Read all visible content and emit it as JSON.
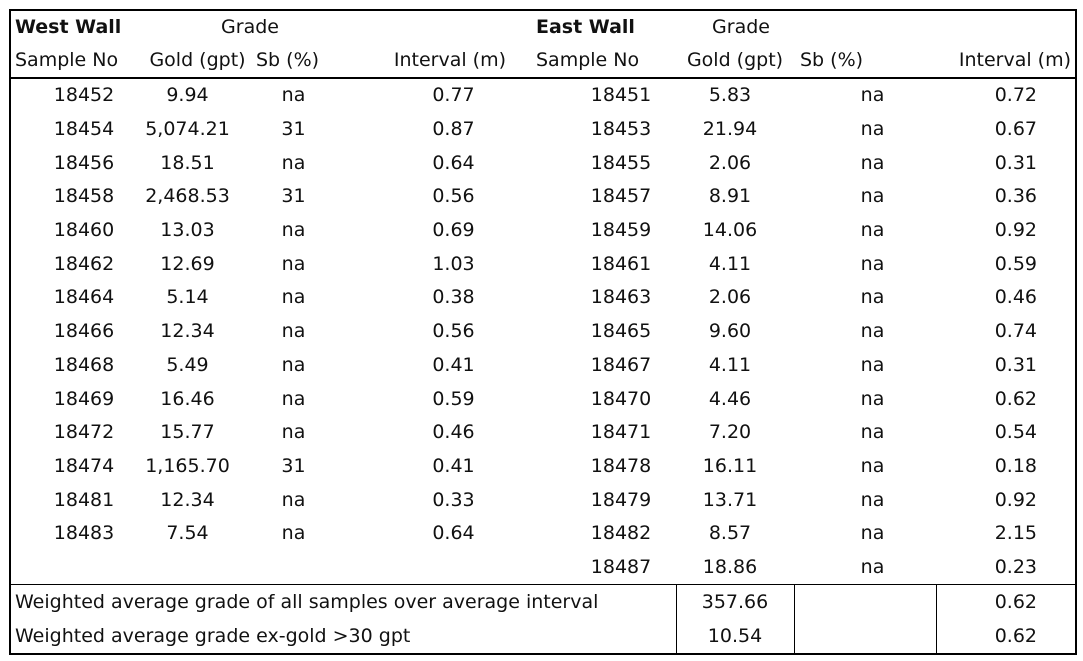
{
  "west": {
    "title": "West Wall",
    "grade_label": "Grade",
    "headers": [
      "Sample No",
      "Gold (gpt)",
      "Sb (%)",
      "Interval (m)"
    ],
    "rows": [
      [
        "18452",
        "9.94",
        "na",
        "0.77"
      ],
      [
        "18454",
        "5,074.21",
        "31",
        "0.87"
      ],
      [
        "18456",
        "18.51",
        "na",
        "0.64"
      ],
      [
        "18458",
        "2,468.53",
        "31",
        "0.56"
      ],
      [
        "18460",
        "13.03",
        "na",
        "0.69"
      ],
      [
        "18462",
        "12.69",
        "na",
        "1.03"
      ],
      [
        "18464",
        "5.14",
        "na",
        "0.38"
      ],
      [
        "18466",
        "12.34",
        "na",
        "0.56"
      ],
      [
        "18468",
        "5.49",
        "na",
        "0.41"
      ],
      [
        "18469",
        "16.46",
        "na",
        "0.59"
      ],
      [
        "18472",
        "15.77",
        "na",
        "0.46"
      ],
      [
        "18474",
        "1,165.70",
        "31",
        "0.41"
      ],
      [
        "18481",
        "12.34",
        "na",
        "0.33"
      ],
      [
        "18483",
        "7.54",
        "na",
        "0.64"
      ]
    ]
  },
  "east": {
    "title": "East Wall",
    "grade_label": "Grade",
    "headers": [
      "Sample No",
      "Gold (gpt)",
      "Sb (%)",
      "Interval (m)"
    ],
    "rows": [
      [
        "18451",
        "5.83",
        "na",
        "0.72"
      ],
      [
        "18453",
        "21.94",
        "na",
        "0.67"
      ],
      [
        "18455",
        "2.06",
        "na",
        "0.31"
      ],
      [
        "18457",
        "8.91",
        "na",
        "0.36"
      ],
      [
        "18459",
        "14.06",
        "na",
        "0.92"
      ],
      [
        "18461",
        "4.11",
        "na",
        "0.59"
      ],
      [
        "18463",
        "2.06",
        "na",
        "0.46"
      ],
      [
        "18465",
        "9.60",
        "na",
        "0.74"
      ],
      [
        "18467",
        "4.11",
        "na",
        "0.31"
      ],
      [
        "18470",
        "4.46",
        "na",
        "0.62"
      ],
      [
        "18471",
        "7.20",
        "na",
        "0.54"
      ],
      [
        "18478",
        "16.11",
        "na",
        "0.18"
      ],
      [
        "18479",
        "13.71",
        "na",
        "0.92"
      ],
      [
        "18482",
        "8.57",
        "na",
        "2.15"
      ],
      [
        "18487",
        "18.86",
        "na",
        "0.23"
      ]
    ]
  },
  "summary": [
    {
      "label": "Weighted average grade of all samples over average interval",
      "gold": "357.66",
      "sb": "",
      "interval": "0.62"
    },
    {
      "label": "Weighted average grade ex-gold >30 gpt",
      "gold": "10.54",
      "sb": "",
      "interval": "0.62"
    }
  ]
}
